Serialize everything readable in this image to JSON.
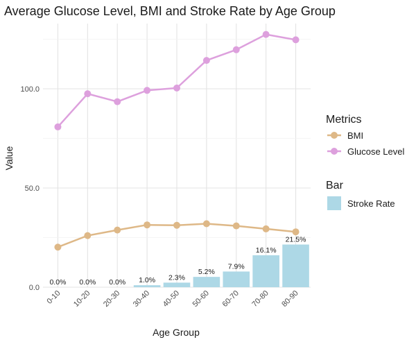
{
  "chart_data": {
    "type": "bar",
    "title": "Average Glucose Level, BMI and Stroke Rate by Age Group",
    "xlabel": "Age Group",
    "ylabel": "Value",
    "categories": [
      "0-10",
      "10-20",
      "20-30",
      "30-40",
      "40-50",
      "50-60",
      "60-70",
      "70-80",
      "80-90"
    ],
    "ylim": [
      0,
      128
    ],
    "yticks": [
      0,
      50,
      100
    ],
    "ytick_labels": [
      "0.0",
      "50.0",
      "100.0"
    ],
    "grid": true,
    "bar_series": {
      "name": "Stroke Rate",
      "values": [
        0.0,
        0.0,
        0.0,
        1.0,
        2.3,
        5.2,
        7.9,
        16.1,
        21.5
      ],
      "labels": [
        "0.0%",
        "0.0%",
        "0.0%",
        "1.0%",
        "2.3%",
        "5.2%",
        "7.9%",
        "16.1%",
        "21.5%"
      ],
      "color": "#add8e6"
    },
    "line_series": [
      {
        "name": "BMI",
        "values": [
          20.2,
          26.0,
          28.8,
          31.4,
          31.2,
          32.0,
          30.9,
          29.4,
          27.9
        ],
        "color": "#deb887"
      },
      {
        "name": "Glucose Level",
        "values": [
          80.8,
          97.5,
          93.5,
          99.2,
          100.4,
          114.3,
          119.7,
          127.4,
          124.7
        ],
        "color": "#dda0dd"
      }
    ],
    "legend": {
      "placement": "right",
      "line_title": "Metrics",
      "bar_title": "Bar",
      "line_entries": [
        "BMI",
        "Glucose Level"
      ],
      "bar_entries": [
        "Stroke Rate"
      ]
    }
  }
}
